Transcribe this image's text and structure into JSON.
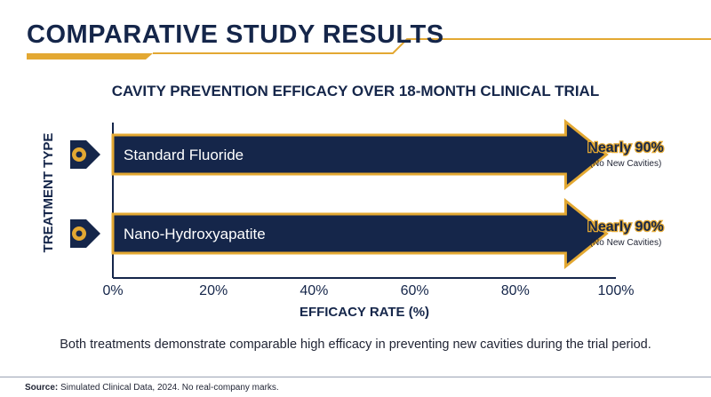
{
  "header": {
    "title": "COMPARATIVE STUDY RESULTS",
    "accent_color": "#e3a832",
    "navy_color": "#15264a"
  },
  "chart_data": {
    "type": "bar",
    "orientation": "horizontal",
    "title": "CAVITY PREVENTION EFFICACY OVER 18-MONTH CLINICAL TRIAL",
    "ylabel": "TREATMENT TYPE",
    "xlabel": "EFFICACY RATE (%)",
    "xlim": [
      0,
      100
    ],
    "x_ticks": [
      "0%",
      "20%",
      "40%",
      "60%",
      "80%",
      "100%"
    ],
    "grid": false,
    "categories": [
      "Standard Fluoride",
      "Nano-Hydroxyapatite"
    ],
    "values": [
      90,
      90
    ],
    "data_labels": [
      "Nearly 90%",
      "Nearly 90%"
    ],
    "data_sublabels": [
      "(No New Cavities)",
      "(No New Cavities)"
    ],
    "bar_color": "#15264a",
    "bar_outline_color": "#e3a832"
  },
  "caption": "Both treatments demonstrate comparable high efficacy in preventing new cavities during the trial period.",
  "footer": {
    "source_label": "Source:",
    "source_text": "Simulated Clinical Data, 2024. No real-company marks."
  }
}
